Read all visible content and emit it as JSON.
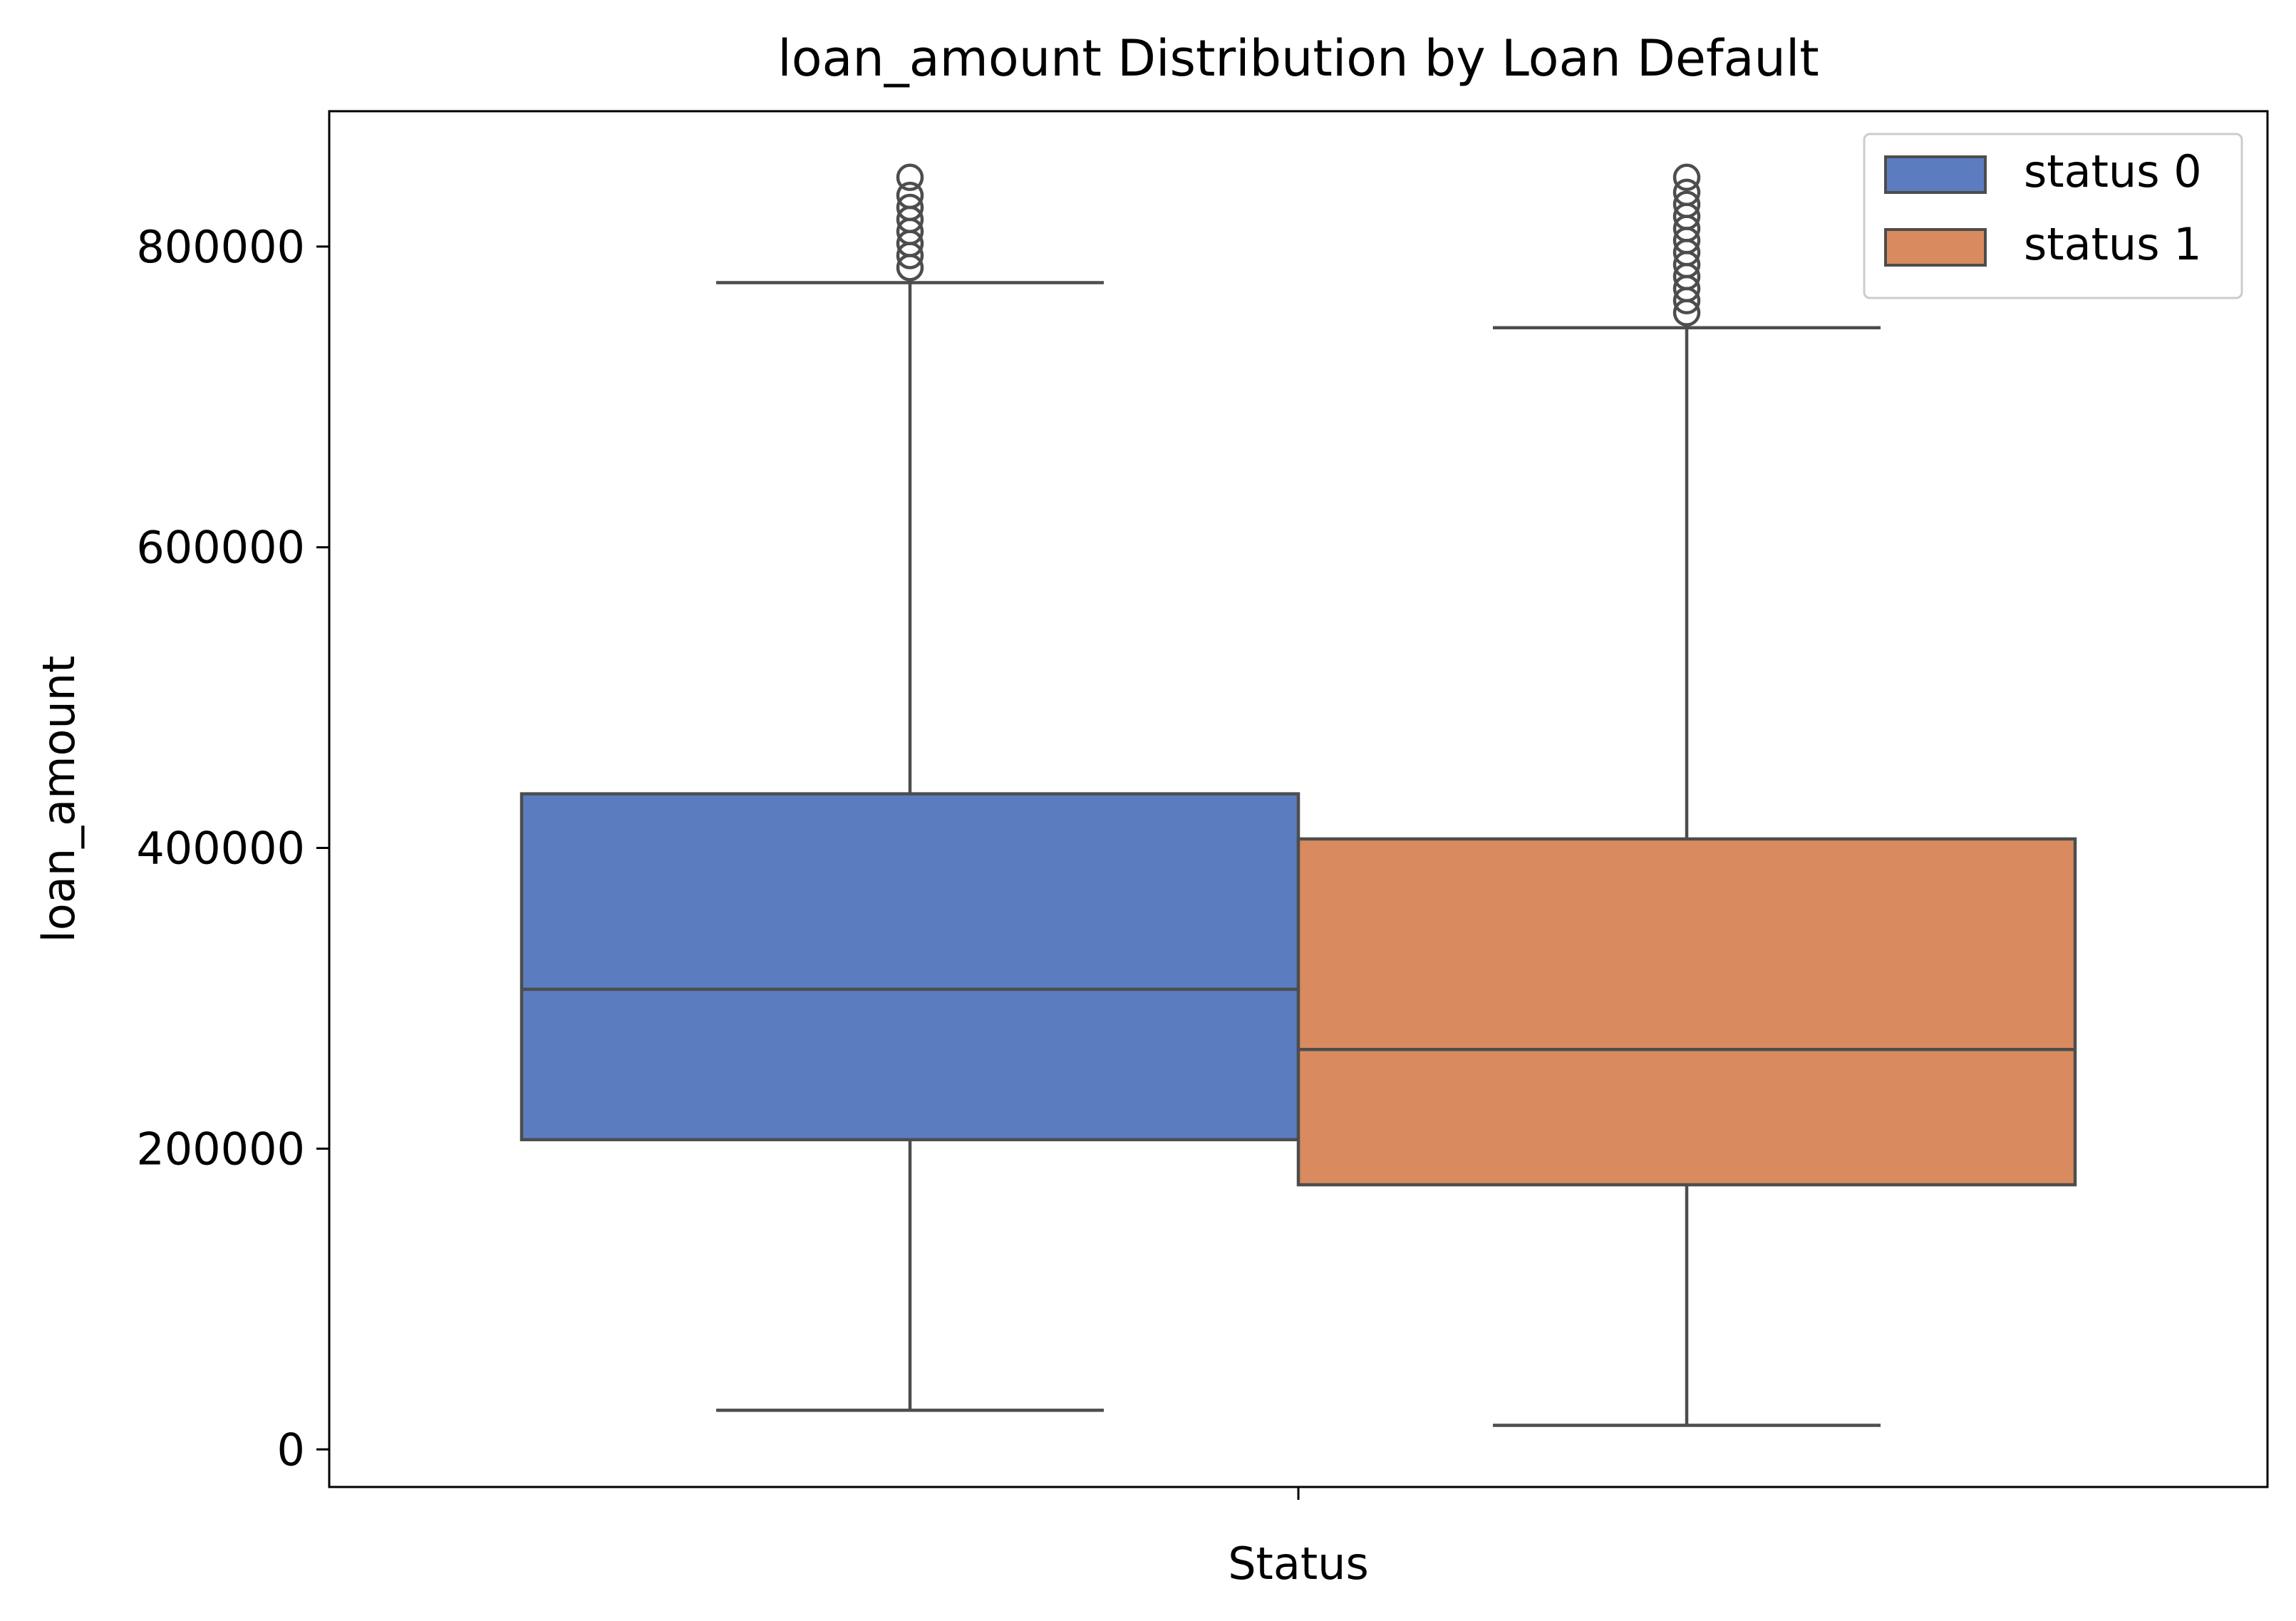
{
  "chart_data": {
    "type": "box",
    "title": "loan_amount Distribution by Loan Default",
    "xlabel": "Status",
    "ylabel": "loan_amount",
    "ylim": [
      -25000,
      890000
    ],
    "yticks": [
      0,
      200000,
      400000,
      600000,
      800000
    ],
    "ytick_labels": [
      "0",
      "200000",
      "400000",
      "600000",
      "800000"
    ],
    "grid": false,
    "legend_position": "top-right",
    "series": [
      {
        "name": "status 0",
        "color": "#5b7dc0",
        "whisker_low": 26000,
        "q1": 206000,
        "median": 306000,
        "q3": 436000,
        "whisker_high": 776000,
        "outliers": [
          786000,
          794000,
          802000,
          810000,
          818000,
          826000,
          834000,
          846000
        ]
      },
      {
        "name": "status 1",
        "color": "#d98b5f",
        "whisker_low": 16000,
        "q1": 176000,
        "median": 266000,
        "q3": 406000,
        "whisker_high": 746000,
        "outliers": [
          756000,
          764000,
          772000,
          780000,
          788000,
          796000,
          804000,
          812000,
          820000,
          828000,
          836000,
          846000
        ]
      }
    ]
  }
}
